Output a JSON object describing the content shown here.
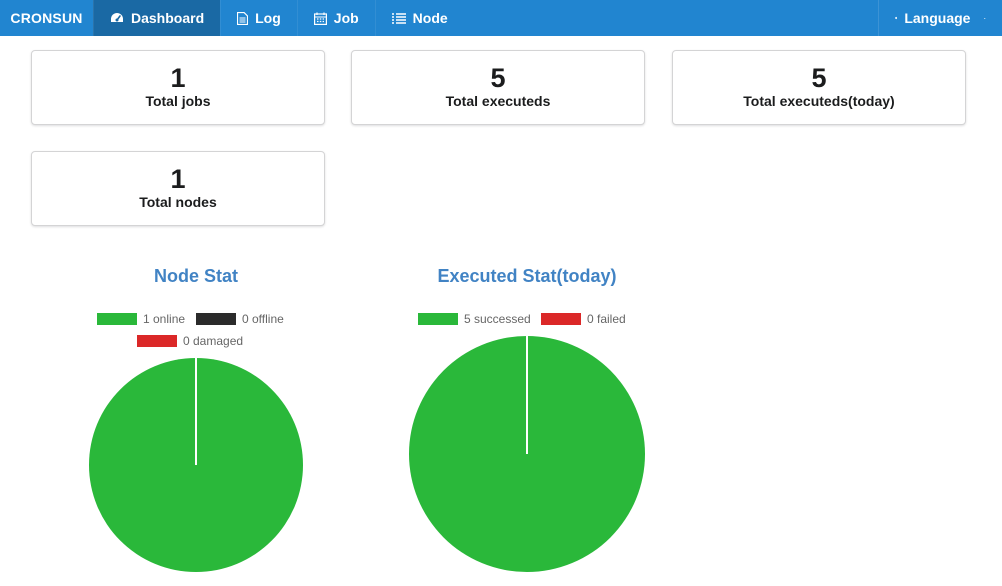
{
  "nav": {
    "brand": "CRONSUN",
    "items": [
      {
        "label": "Dashboard",
        "icon": "dashboard-icon",
        "active": true
      },
      {
        "label": "Log",
        "icon": "file-icon",
        "active": false
      },
      {
        "label": "Job",
        "icon": "calendar-icon",
        "active": false
      },
      {
        "label": "Node",
        "icon": "list-icon",
        "active": false
      }
    ],
    "language": "Language"
  },
  "stats": {
    "total_jobs": {
      "value": "1",
      "label": "Total jobs"
    },
    "total_executeds": {
      "value": "5",
      "label": "Total executeds"
    },
    "total_executeds_today": {
      "value": "5",
      "label": "Total executeds(today)"
    },
    "total_nodes": {
      "value": "1",
      "label": "Total nodes"
    }
  },
  "colors": {
    "nav_bg": "#2185d0",
    "nav_active": "#1a69a4",
    "title": "#4183c4",
    "green": "#2ab83a",
    "black": "#2b2b2b",
    "red": "#db2828"
  },
  "chart_data": [
    {
      "type": "pie",
      "title": "Node Stat",
      "legend_position": "top",
      "series": [
        {
          "name": "online",
          "value": 1,
          "label": "1 online",
          "color": "#2ab83a"
        },
        {
          "name": "offline",
          "value": 0,
          "label": "0 offline",
          "color": "#2b2b2b"
        },
        {
          "name": "damaged",
          "value": 0,
          "label": "0 damaged",
          "color": "#db2828"
        }
      ]
    },
    {
      "type": "pie",
      "title": "Executed Stat(today)",
      "legend_position": "top",
      "series": [
        {
          "name": "successed",
          "value": 5,
          "label": "5 successed",
          "color": "#2ab83a"
        },
        {
          "name": "failed",
          "value": 0,
          "label": "0 failed",
          "color": "#db2828"
        }
      ]
    }
  ]
}
